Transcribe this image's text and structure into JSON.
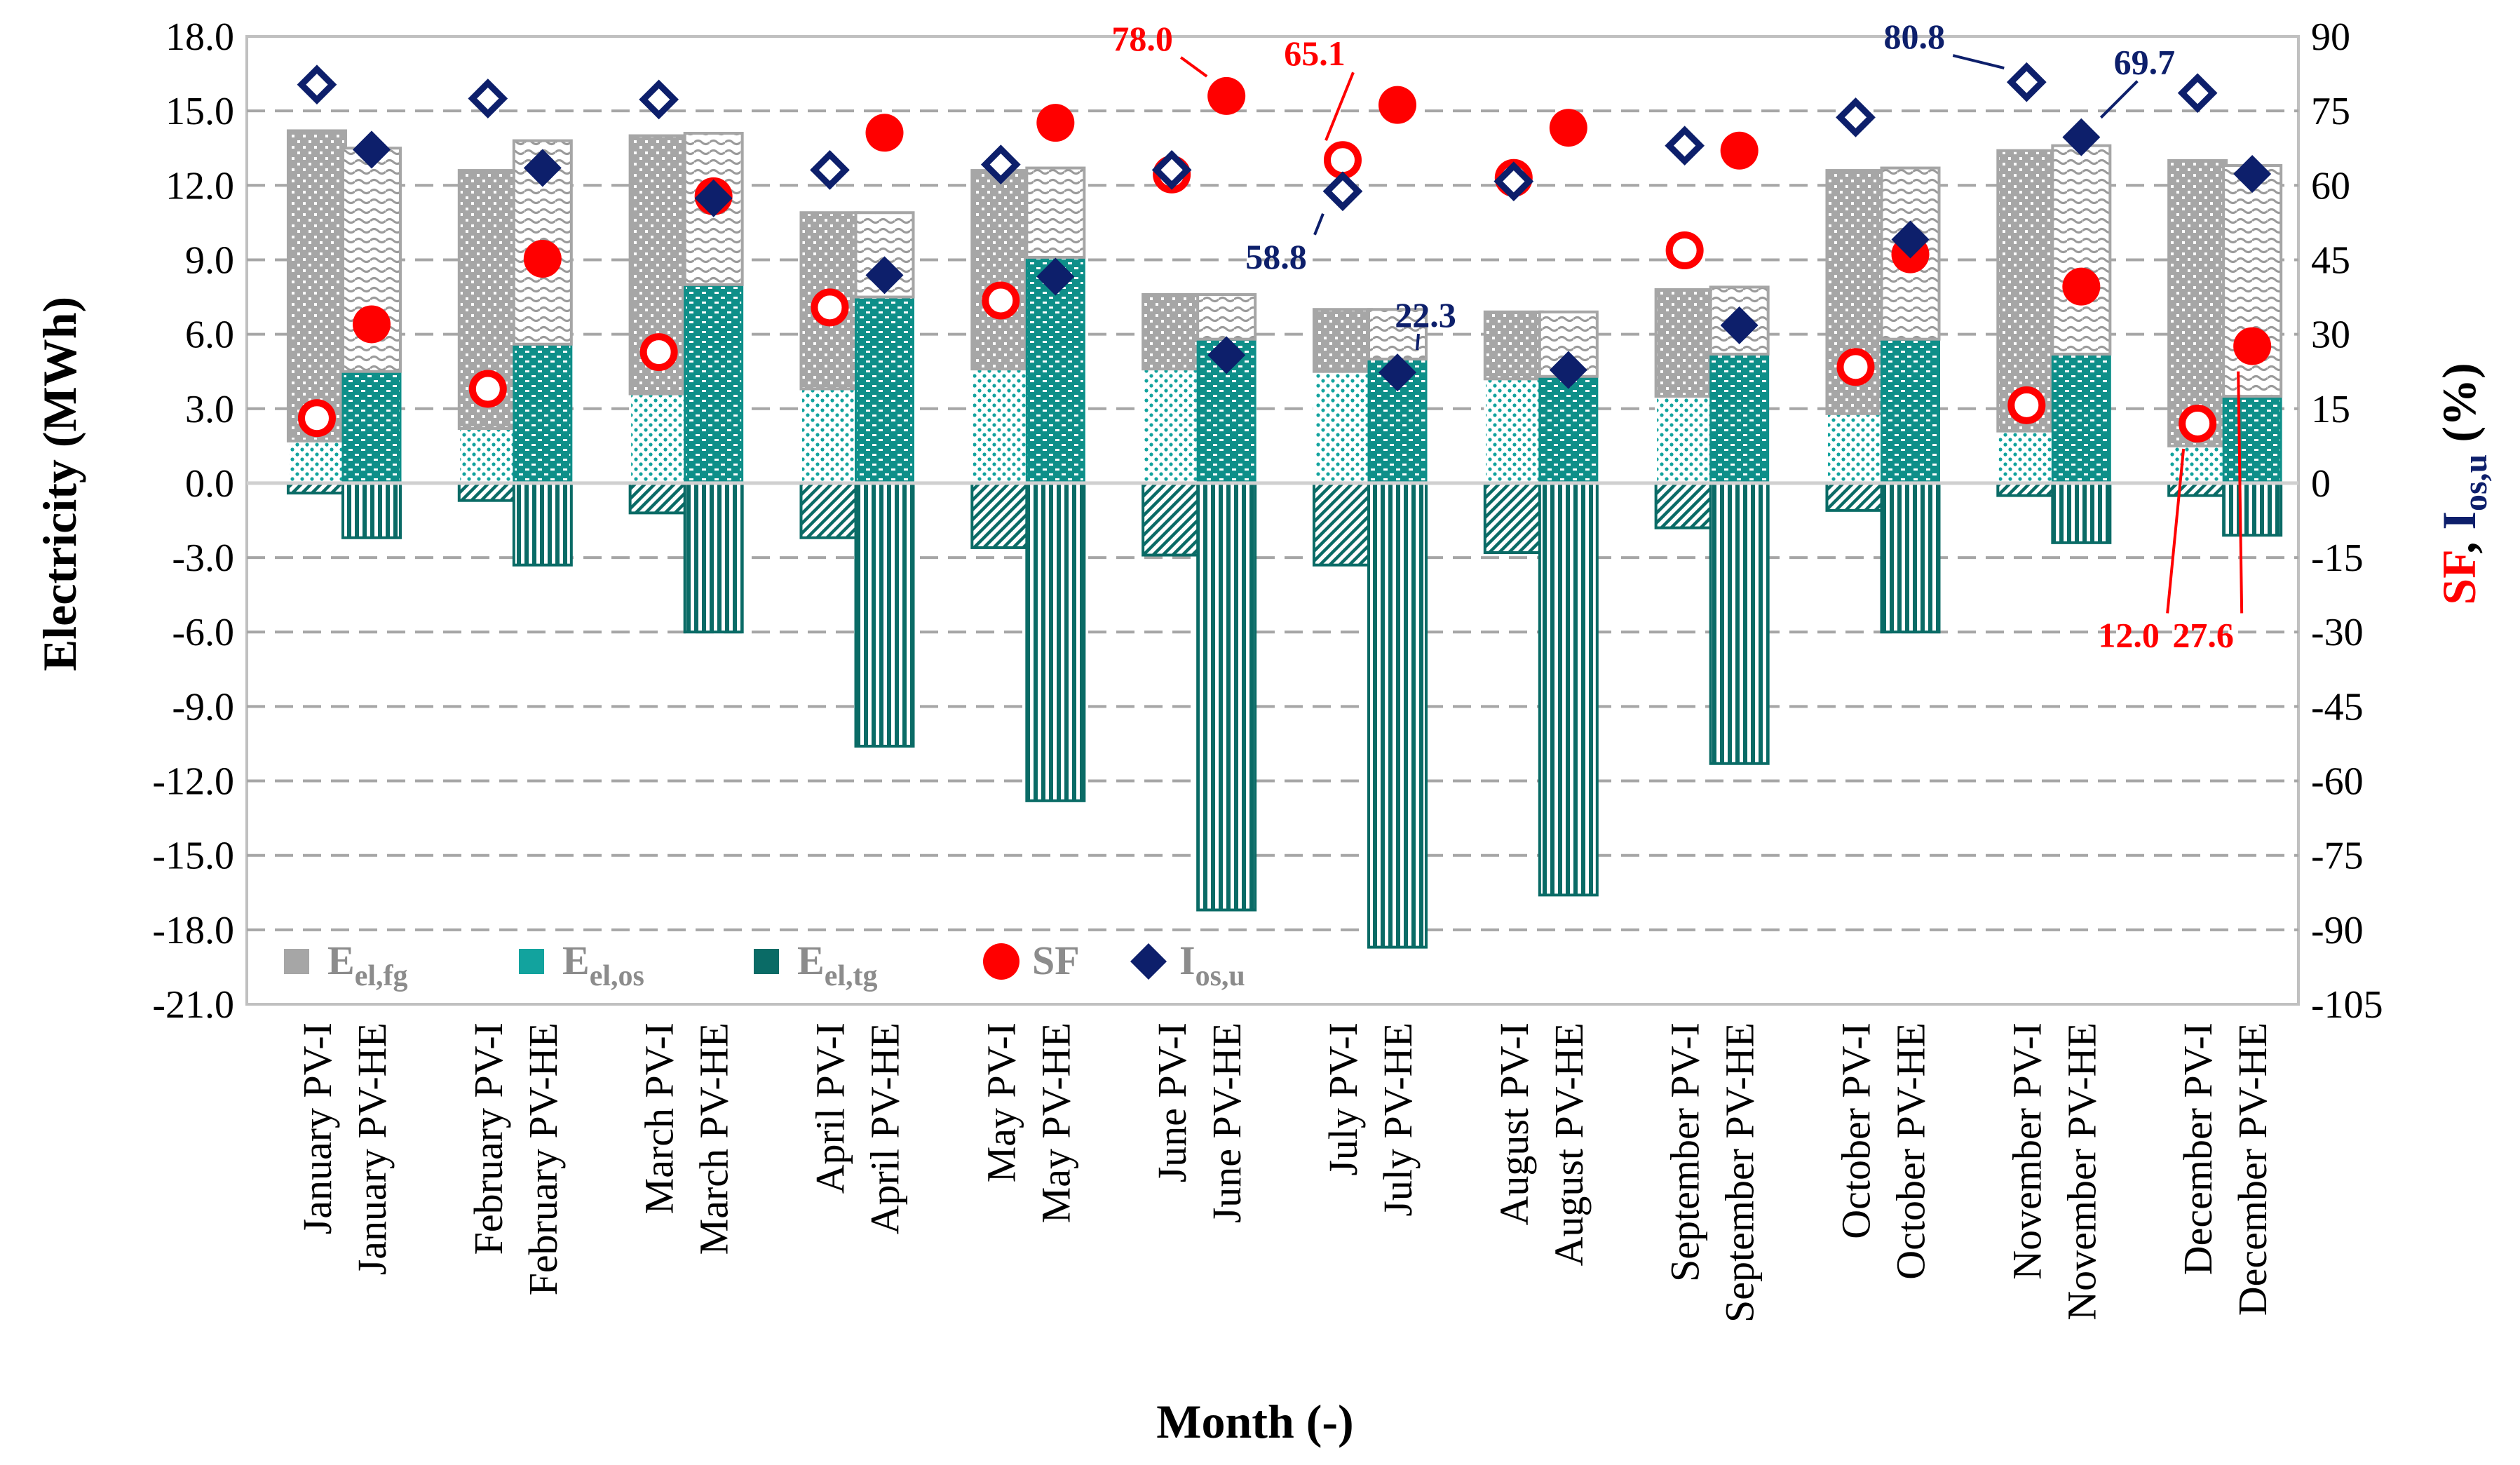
{
  "chart_data": {
    "type": "bar",
    "xlabel": "Month (-)",
    "ylabel": "Electricity (MWh)",
    "y2label": "SF, Ios,u (%)",
    "y2label_parts": {
      "sf": "SF",
      "sep": ", ",
      "ios": "I",
      "ios_sub": "os,u",
      "unit": " (%)"
    },
    "ylim": [
      -21.0,
      18.0
    ],
    "y_ticks": [
      "18.0",
      "15.0",
      "12.0",
      "9.0",
      "6.0",
      "3.0",
      "0.0",
      "-3.0",
      "-6.0",
      "-9.0",
      "-12.0",
      "-15.0",
      "-18.0",
      "-21.0"
    ],
    "y2lim": [
      -105,
      90
    ],
    "y2_ticks": [
      "90",
      "75",
      "60",
      "45",
      "30",
      "15",
      "0",
      "-15",
      "-30",
      "-45",
      "-60",
      "-75",
      "-90",
      "-105"
    ],
    "grid": true,
    "categories": [
      "January PV-I",
      "January PV-HE",
      "February PV-I",
      "February PV-HE",
      "March PV-I",
      "March PV-HE",
      "April PV-I",
      "April PV-HE",
      "May PV-I",
      "May PV-HE",
      "June PV-I",
      "June PV-HE",
      "July PV-I",
      "July PV-HE",
      "August PV-I",
      "August PV-HE",
      "September PV-I",
      "September PV-HE",
      "October PV-I",
      "October PV-HE",
      "November PV-I",
      "November PV-HE",
      "December PV-I",
      "December PV-HE"
    ],
    "series": [
      {
        "name": "Eel,fg",
        "label": "E",
        "sub": "el,fg",
        "axis": "left",
        "kind": "bar-stack",
        "color": "#a6a6a6",
        "values": [
          12.5,
          9.0,
          10.4,
          8.2,
          10.4,
          6.1,
          7.1,
          3.4,
          8.0,
          3.6,
          3.0,
          1.8,
          2.5,
          2.0,
          2.7,
          2.6,
          4.3,
          2.7,
          9.8,
          6.9,
          11.3,
          8.4,
          11.5,
          9.3
        ]
      },
      {
        "name": "Eel,os",
        "label": "E",
        "sub": "el,os",
        "axis": "left",
        "kind": "bar-stack",
        "color": "#12a39e",
        "values": [
          1.7,
          4.5,
          2.2,
          5.6,
          3.6,
          8.0,
          3.8,
          7.5,
          4.6,
          9.1,
          4.6,
          5.8,
          4.5,
          5.0,
          4.2,
          4.3,
          3.5,
          5.2,
          2.8,
          5.8,
          2.1,
          5.2,
          1.5,
          3.5
        ]
      },
      {
        "name": "Eel,tg",
        "label": "E",
        "sub": "el,tg",
        "axis": "left",
        "kind": "bar-negative",
        "color": "#0a6b66",
        "values": [
          -0.4,
          -2.2,
          -0.7,
          -3.3,
          -1.2,
          -6.0,
          -2.2,
          -10.6,
          -2.6,
          -12.8,
          -2.9,
          -17.2,
          -3.3,
          -18.7,
          -2.8,
          -16.6,
          -1.8,
          -11.3,
          -1.1,
          -6.0,
          -0.5,
          -2.4,
          -0.5,
          -2.1
        ]
      },
      {
        "name": "SF",
        "label": "SF",
        "axis": "right",
        "kind": "circle",
        "color": "#ff0000",
        "values": [
          13.1,
          32.0,
          19.0,
          45.2,
          26.4,
          57.8,
          35.4,
          70.6,
          36.8,
          72.6,
          62.2,
          78.0,
          65.1,
          76.2,
          61.5,
          71.6,
          46.9,
          67.0,
          23.4,
          46.1,
          15.7,
          39.6,
          12.0,
          27.6
        ]
      },
      {
        "name": "Ios,u",
        "label": "I",
        "sub": "os,u",
        "axis": "right",
        "kind": "diamond",
        "color": "#0d1f6b",
        "values": [
          80.3,
          67.2,
          77.5,
          63.5,
          77.3,
          57.4,
          63.1,
          41.9,
          64.2,
          41.6,
          63.1,
          25.8,
          58.8,
          22.3,
          60.8,
          22.8,
          68.0,
          31.8,
          73.7,
          49.1,
          80.8,
          69.7,
          78.6,
          62.3
        ]
      }
    ],
    "annotations": [
      {
        "text": "78.0",
        "color": "#ff0000"
      },
      {
        "text": "65.1",
        "color": "#ff0000"
      },
      {
        "text": "58.8",
        "color": "#0d1f6b"
      },
      {
        "text": "22.3",
        "color": "#0d1f6b"
      },
      {
        "text": "80.8",
        "color": "#0d1f6b"
      },
      {
        "text": "69.7",
        "color": "#0d1f6b"
      },
      {
        "text": "12.0",
        "color": "#ff0000"
      },
      {
        "text": "27.6",
        "color": "#ff0000"
      }
    ]
  }
}
